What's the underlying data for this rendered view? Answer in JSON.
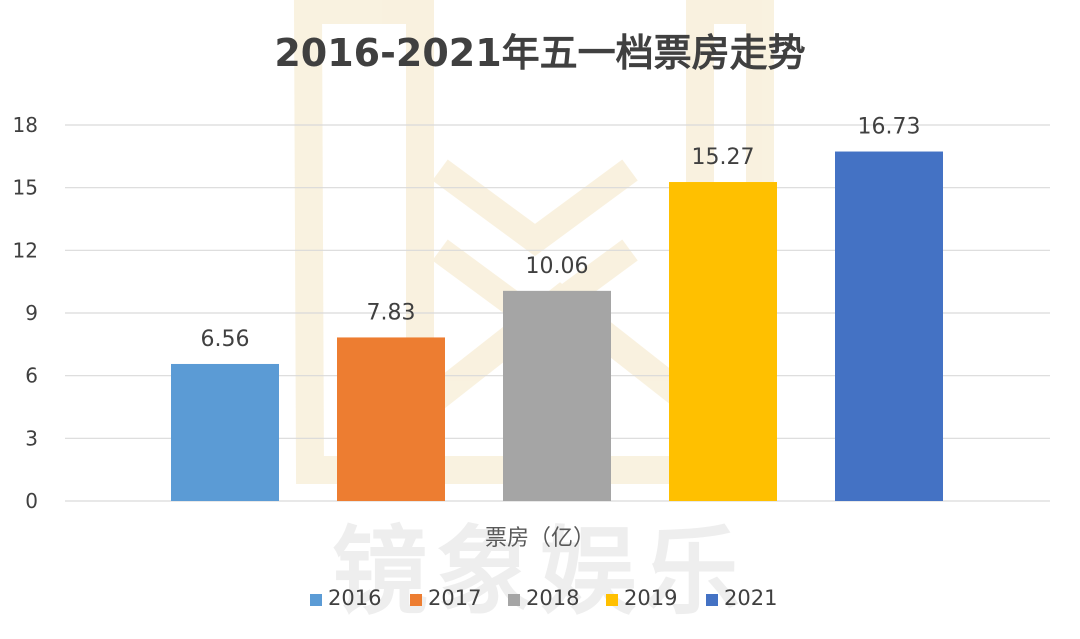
{
  "chart_data": {
    "type": "bar",
    "title": "2016-2021年五一档票房走势",
    "xlabel": "票房（亿）",
    "ylabel": "",
    "ylim": [
      0,
      18
    ],
    "yticks": [
      "0",
      "3",
      "6",
      "9",
      "12",
      "15",
      "18"
    ],
    "grid": true,
    "legend_position": "bottom",
    "categories": [
      "2016",
      "2017",
      "2018",
      "2019",
      "2021"
    ],
    "values": [
      6.56,
      7.83,
      10.06,
      15.27,
      16.73
    ],
    "value_labels": [
      "6.56",
      "7.83",
      "10.06",
      "15.27",
      "16.73"
    ],
    "colors": [
      "#5B9BD5",
      "#ED7D31",
      "#A5A5A5",
      "#FFC000",
      "#4472C4"
    ],
    "watermark": "镜象娱乐"
  }
}
